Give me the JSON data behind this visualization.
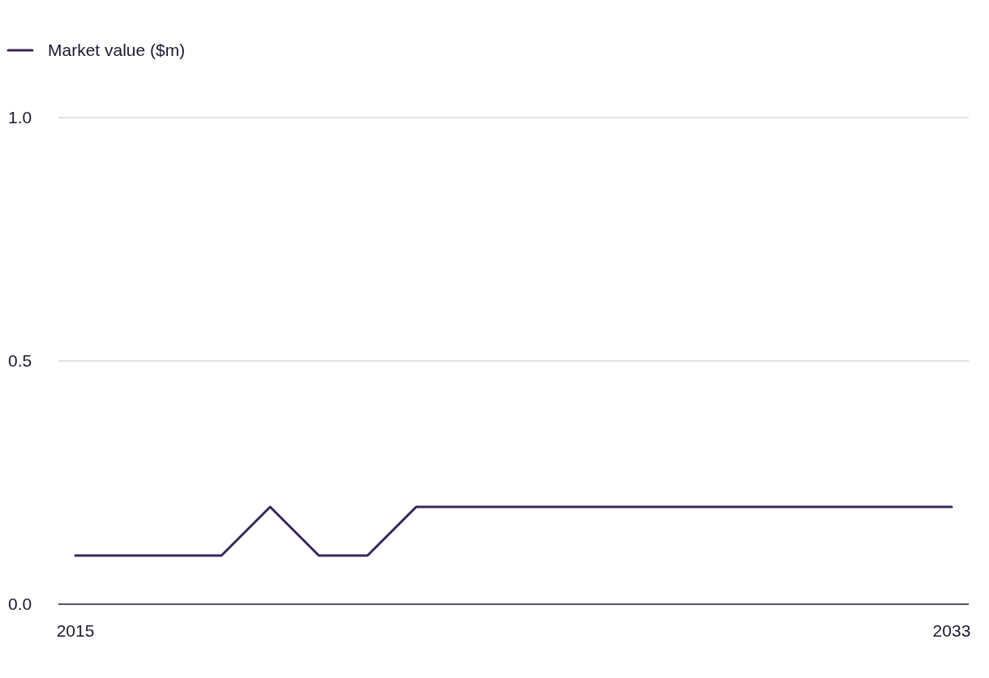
{
  "chart_data": {
    "type": "line",
    "categories": [
      "2015",
      null,
      null,
      null,
      null,
      null,
      null,
      null,
      null,
      null,
      null,
      null,
      null,
      null,
      null,
      null,
      null,
      null,
      "2033"
    ],
    "series": [
      {
        "name": "Market value ($m)",
        "color": "#3a2659",
        "values": [
          0.1,
          0.1,
          0.1,
          0.1,
          0.2,
          0.1,
          0.1,
          0.2,
          0.2,
          0.2,
          0.2,
          0.2,
          0.2,
          0.2,
          0.2,
          0.2,
          0.2,
          0.2,
          0.2
        ]
      }
    ],
    "ylim": [
      0,
      1.0
    ],
    "yticks": [
      {
        "value": 0,
        "label": "0.0"
      },
      {
        "value": 0.5,
        "label": "0.5"
      },
      {
        "value": 1.0,
        "label": "1.0"
      }
    ],
    "grid": "y",
    "legend": "top left"
  }
}
